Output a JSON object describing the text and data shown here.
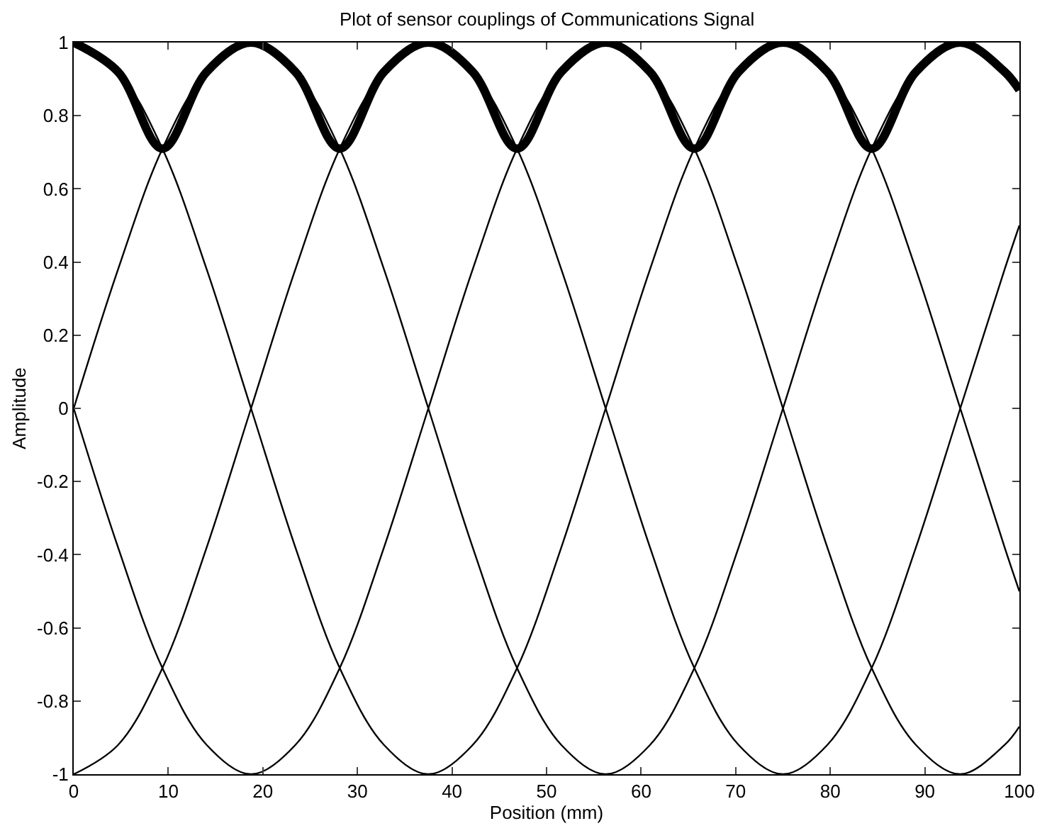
{
  "chart_data": {
    "type": "line",
    "title": "Plot of sensor couplings of Communications Signal",
    "xlabel": "Position (mm)",
    "ylabel": "Amplitude",
    "x": [
      0,
      4.69,
      9.38,
      14.06,
      18.75,
      23.44,
      28.13,
      32.81,
      37.5,
      42.19,
      46.88,
      51.56,
      56.25,
      60.94,
      65.63,
      70.31,
      75,
      79.69,
      84.38,
      89.06,
      93.75,
      98.44,
      100
    ],
    "series": [
      {
        "color": "#000000",
        "values": [
          1,
          0.92,
          0.71,
          0.38,
          0,
          -0.38,
          -0.71,
          -0.92,
          -1,
          -0.92,
          -0.71,
          -0.38,
          0,
          0.38,
          0.71,
          0.92,
          1,
          0.92,
          0.71,
          0.38,
          0,
          -0.38,
          -0.5
        ]
      },
      {
        "color": "#000000",
        "values": [
          -1,
          -0.92,
          -0.71,
          -0.38,
          0,
          0.38,
          0.71,
          0.92,
          1,
          0.92,
          0.71,
          0.38,
          0,
          -0.38,
          -0.71,
          -0.92,
          -1,
          -0.92,
          -0.71,
          -0.38,
          0,
          0.38,
          0.5
        ]
      },
      {
        "color": "#000000",
        "values": [
          0,
          0.38,
          0.71,
          0.92,
          1,
          0.92,
          0.71,
          0.38,
          0,
          -0.38,
          -0.71,
          -0.92,
          -1,
          -0.92,
          -0.71,
          -0.38,
          0,
          0.38,
          0.71,
          0.92,
          1,
          0.92,
          0.87
        ]
      },
      {
        "color": "#000000",
        "values": [
          0,
          -0.38,
          -0.71,
          -0.92,
          -1,
          -0.92,
          -0.71,
          -0.38,
          0,
          0.38,
          0.71,
          0.92,
          1,
          0.92,
          0.71,
          0.38,
          0,
          -0.38,
          -0.71,
          -0.92,
          -1,
          -0.92,
          -0.87
        ]
      },
      {
        "color": "#000000",
        "values": [
          1,
          0.92,
          0.71,
          0.92,
          1,
          0.92,
          0.71,
          0.92,
          1,
          0.92,
          0.71,
          0.92,
          1,
          0.92,
          0.71,
          0.92,
          1,
          0.92,
          0.71,
          0.92,
          1,
          0.92,
          0.87
        ]
      }
    ],
    "xlim": [
      0,
      100
    ],
    "xticks": [
      0,
      10,
      20,
      30,
      40,
      50,
      60,
      70,
      80,
      90,
      100
    ],
    "ylim": [
      -1,
      1
    ],
    "yticks": [
      -1,
      -0.8,
      -0.6,
      -0.4,
      -0.2,
      0,
      0.2,
      0.4,
      0.6,
      0.8,
      1
    ],
    "marker": "none",
    "line_style": "solid"
  }
}
